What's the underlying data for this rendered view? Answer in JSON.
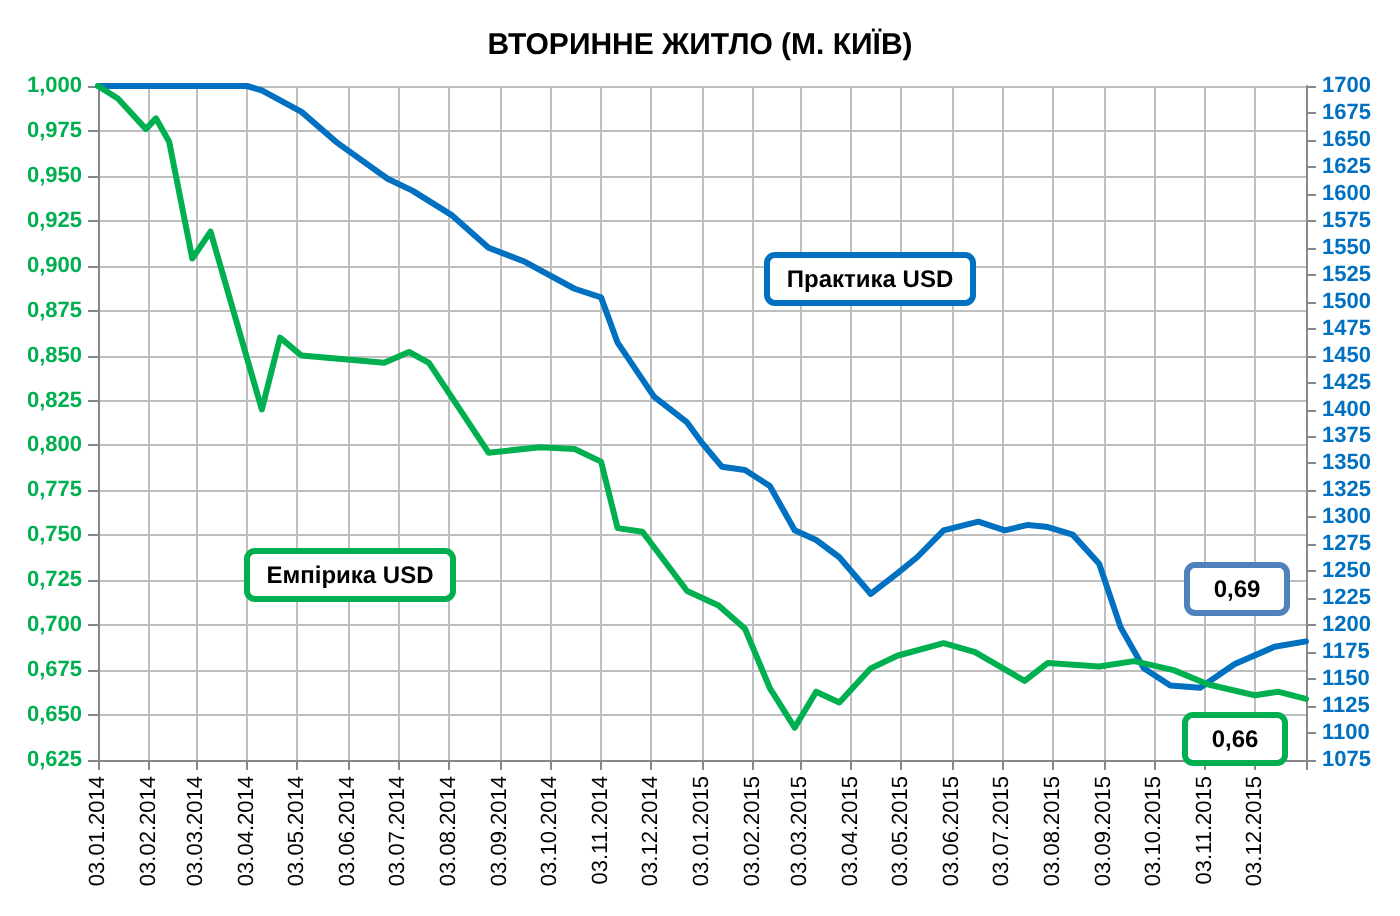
{
  "chart_data": {
    "type": "line",
    "title": "ВТОРИННЕ ЖИТЛО (М. КИЇВ)",
    "annotations": [
      "0,69",
      "0,66"
    ],
    "xlim": [
      "2014-01-03",
      "2016-01-03"
    ],
    "xticks": [
      {
        "value": "2014-01-03",
        "label": "03.01.2014"
      },
      {
        "value": "2014-02-03",
        "label": "03.02.2014"
      },
      {
        "value": "2014-03-03",
        "label": "03.03.2014"
      },
      {
        "value": "2014-04-03",
        "label": "03.04.2014"
      },
      {
        "value": "2014-05-03",
        "label": "03.05.2014"
      },
      {
        "value": "2014-06-03",
        "label": "03.06.2014"
      },
      {
        "value": "2014-07-03",
        "label": "03.07.2014"
      },
      {
        "value": "2014-08-03",
        "label": "03.08.2014"
      },
      {
        "value": "2014-09-03",
        "label": "03.09.2014"
      },
      {
        "value": "2014-10-03",
        "label": "03.10.2014"
      },
      {
        "value": "2014-11-03",
        "label": "03.11.2014"
      },
      {
        "value": "2014-12-03",
        "label": "03.12.2014"
      },
      {
        "value": "2015-01-03",
        "label": "03.01.2015"
      },
      {
        "value": "2015-02-03",
        "label": "03.02.2015"
      },
      {
        "value": "2015-03-03",
        "label": "03.03.2015"
      },
      {
        "value": "2015-04-03",
        "label": "03.04.2015"
      },
      {
        "value": "2015-05-03",
        "label": "03.05.2015"
      },
      {
        "value": "2015-06-03",
        "label": "03.06.2015"
      },
      {
        "value": "2015-07-03",
        "label": "03.07.2015"
      },
      {
        "value": "2015-08-03",
        "label": "03.08.2015"
      },
      {
        "value": "2015-09-03",
        "label": "03.09.2015"
      },
      {
        "value": "2015-10-03",
        "label": "03.10.2015"
      },
      {
        "value": "2015-11-03",
        "label": "03.11.2015"
      },
      {
        "value": "2015-12-03",
        "label": "03.12.2015"
      },
      {
        "value": "2016-01-03",
        "label": null
      }
    ],
    "ylim": [
      0.625,
      1
    ],
    "yticks": [
      {
        "value": 0.625,
        "label": "0,625"
      },
      {
        "value": 0.65,
        "label": "0,650"
      },
      {
        "value": 0.675,
        "label": "0,675"
      },
      {
        "value": 0.7,
        "label": "0,700"
      },
      {
        "value": 0.725,
        "label": "0,725"
      },
      {
        "value": 0.75,
        "label": "0,750"
      },
      {
        "value": 0.775,
        "label": "0,775"
      },
      {
        "value": 0.8,
        "label": "0,800"
      },
      {
        "value": 0.825,
        "label": "0,825"
      },
      {
        "value": 0.85,
        "label": "0,850"
      },
      {
        "value": 0.875,
        "label": "0,875"
      },
      {
        "value": 0.9,
        "label": "0,900"
      },
      {
        "value": 0.925,
        "label": "0,925"
      },
      {
        "value": 0.95,
        "label": "0,950"
      },
      {
        "value": 0.975,
        "label": "0,975"
      },
      {
        "value": 1,
        "label": "1,000"
      }
    ],
    "y2lim": [
      1075,
      1700
    ],
    "y2ticks": [
      1075,
      1100,
      1125,
      1150,
      1175,
      1200,
      1225,
      1250,
      1275,
      1300,
      1325,
      1350,
      1375,
      1400,
      1425,
      1450,
      1475,
      1500,
      1525,
      1550,
      1575,
      1600,
      1625,
      1650,
      1675,
      1700
    ],
    "grid": true,
    "legend": false,
    "marker": "none",
    "line_style": "solid",
    "series": [
      {
        "name": "Практика USD",
        "color": "#0070c0",
        "axis": "y2",
        "x": [
          "2014-01-03",
          "2014-03-01",
          "2014-04-03",
          "2014-04-12",
          "2014-05-06",
          "2014-05-27",
          "2014-06-27",
          "2014-07-12",
          "2014-08-05",
          "2014-08-27",
          "2014-09-18",
          "2014-10-18",
          "2014-11-03",
          "2014-11-13",
          "2014-12-05",
          "2014-12-25",
          "2015-01-03",
          "2015-01-15",
          "2015-01-29",
          "2015-02-13",
          "2015-02-28",
          "2015-03-13",
          "2015-03-27",
          "2015-04-15",
          "2015-05-01",
          "2015-05-13",
          "2015-05-29",
          "2015-06-19",
          "2015-07-05",
          "2015-07-19",
          "2015-07-31",
          "2015-08-15",
          "2015-08-31",
          "2015-09-13",
          "2015-09-27",
          "2015-10-13",
          "2015-10-31",
          "2015-11-21",
          "2015-12-15",
          "2016-01-03"
        ],
        "values": [
          1700,
          1700,
          1700,
          1696,
          1676,
          1648,
          1614,
          1603,
          1580,
          1550,
          1537,
          1512,
          1504,
          1462,
          1412,
          1388,
          1369,
          1347,
          1344,
          1329,
          1288,
          1279,
          1263,
          1229,
          1248,
          1263,
          1288,
          1296,
          1288,
          1293,
          1291,
          1284,
          1257,
          1198,
          1160,
          1144,
          1142,
          1164,
          1180,
          1185
        ]
      },
      {
        "name": "Емпірика USD",
        "color": "#00b050",
        "x": [
          "2014-01-03",
          "2014-01-15",
          "2014-02-01",
          "2014-02-07",
          "2014-02-15",
          "2014-03-01",
          "2014-03-12",
          "2014-04-12",
          "2014-04-23",
          "2014-05-06",
          "2014-06-25",
          "2014-07-10",
          "2014-07-22",
          "2014-08-27",
          "2014-09-27",
          "2014-10-18",
          "2014-11-03",
          "2014-11-13",
          "2014-11-28",
          "2014-12-25",
          "2015-01-13",
          "2015-01-29",
          "2015-02-13",
          "2015-02-28",
          "2015-03-13",
          "2015-03-27",
          "2015-04-15",
          "2015-05-01",
          "2015-05-29",
          "2015-06-17",
          "2015-07-17",
          "2015-07-31",
          "2015-08-31",
          "2015-09-21",
          "2015-10-15",
          "2015-11-05",
          "2015-12-03",
          "2015-12-17",
          "2016-01-03"
        ],
        "values": [
          1,
          0.993,
          0.976,
          0.982,
          0.969,
          0.904,
          0.919,
          0.82,
          0.86,
          0.85,
          0.846,
          0.852,
          0.846,
          0.796,
          0.799,
          0.798,
          0.791,
          0.754,
          0.752,
          0.719,
          0.711,
          0.698,
          0.665,
          0.643,
          0.663,
          0.657,
          0.676,
          0.683,
          0.69,
          0.685,
          0.669,
          0.679,
          0.677,
          0.68,
          0.675,
          0.667,
          0.661,
          0.663,
          0.659
        ]
      }
    ]
  }
}
